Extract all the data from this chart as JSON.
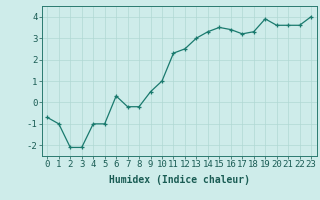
{
  "x": [
    0,
    1,
    2,
    3,
    4,
    5,
    6,
    7,
    8,
    9,
    10,
    11,
    12,
    13,
    14,
    15,
    16,
    17,
    18,
    19,
    20,
    21,
    22,
    23
  ],
  "y": [
    -0.7,
    -1.0,
    -2.1,
    -2.1,
    -1.0,
    -1.0,
    0.3,
    -0.2,
    -0.2,
    0.5,
    1.0,
    2.3,
    2.5,
    3.0,
    3.3,
    3.5,
    3.4,
    3.2,
    3.3,
    3.9,
    3.6,
    3.6,
    3.6,
    4.0
  ],
  "line_color": "#1a7a6e",
  "marker": "+",
  "marker_size": 3,
  "linewidth": 0.9,
  "xlabel": "Humidex (Indice chaleur)",
  "xlim": [
    -0.5,
    23.5
  ],
  "ylim": [
    -2.5,
    4.5
  ],
  "yticks": [
    -2,
    -1,
    0,
    1,
    2,
    3,
    4
  ],
  "xtick_labels": [
    "0",
    "1",
    "2",
    "3",
    "4",
    "5",
    "6",
    "7",
    "8",
    "9",
    "10",
    "11",
    "12",
    "13",
    "14",
    "15",
    "16",
    "17",
    "18",
    "19",
    "20",
    "21",
    "22",
    "23"
  ],
  "bg_color": "#ceecea",
  "grid_color": "#b0d8d4",
  "axis_color": "#2a7a70",
  "label_color": "#1a5c54",
  "font_family": "monospace",
  "xlabel_fontsize": 7,
  "tick_fontsize": 6.5
}
